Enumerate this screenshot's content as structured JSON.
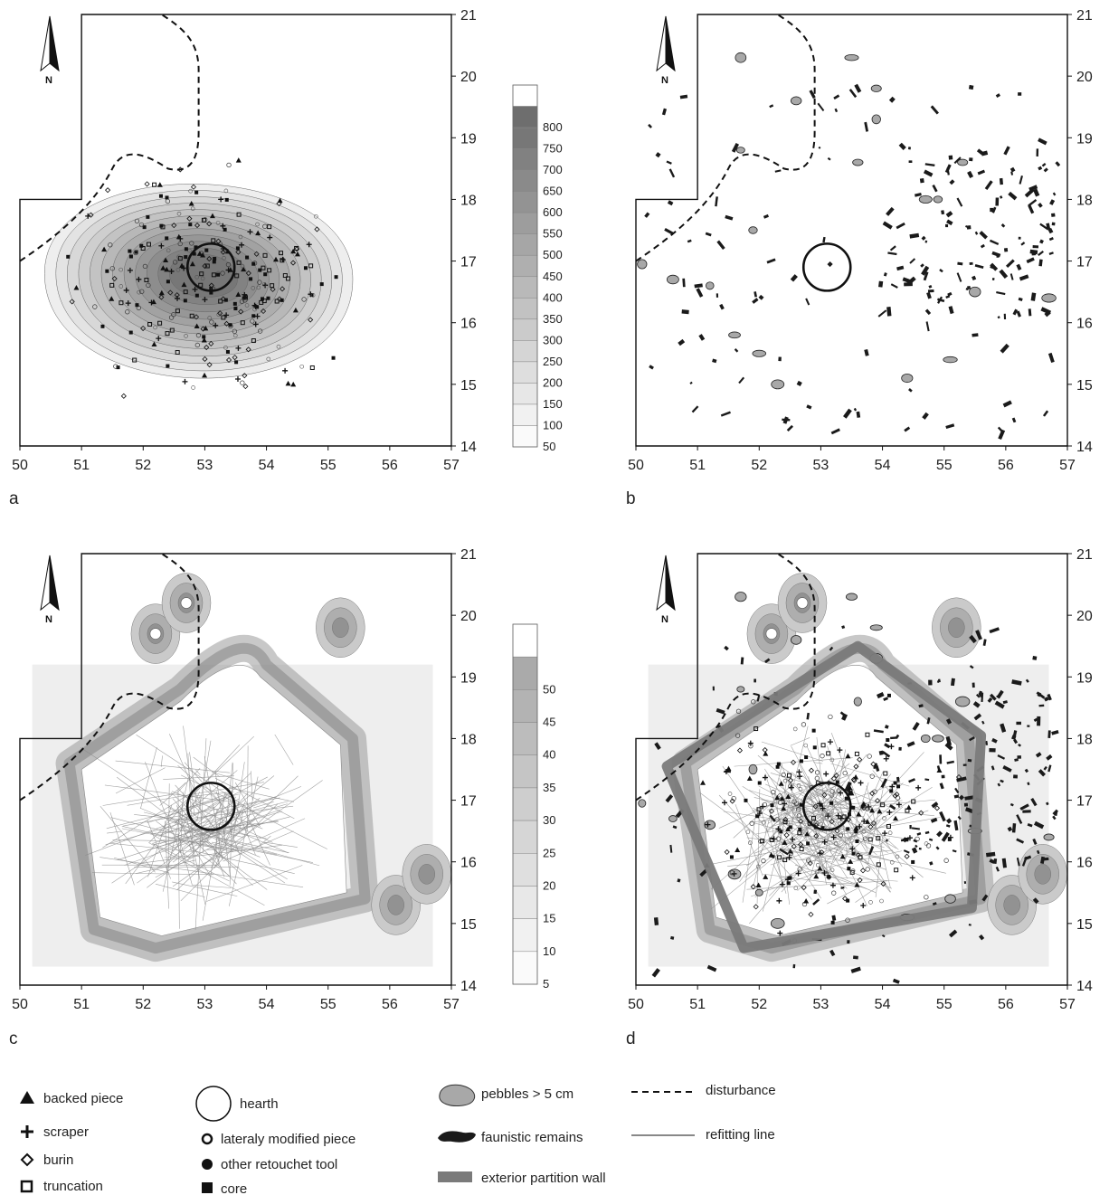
{
  "panels": [
    {
      "label": "a",
      "show_density": true,
      "show_finds": true,
      "show_fauna": false,
      "show_refits": false,
      "show_wall": false,
      "show_disturbance": true
    },
    {
      "label": "b",
      "show_density": false,
      "show_finds": false,
      "show_fauna": true,
      "show_refits": false,
      "show_wall": false,
      "show_disturbance": true
    },
    {
      "label": "c",
      "show_density": true,
      "show_finds": false,
      "show_fauna": false,
      "show_refits": true,
      "show_wall": false,
      "show_disturbance": true
    },
    {
      "label": "d",
      "show_density": true,
      "show_finds": true,
      "show_fauna": true,
      "show_refits": true,
      "show_wall": true,
      "show_disturbance": true
    }
  ],
  "north_label": "N",
  "x_ticks": [
    "50",
    "51",
    "52",
    "53",
    "54",
    "55",
    "56",
    "57"
  ],
  "y_ticks": [
    "14",
    "15",
    "16",
    "17",
    "18",
    "19",
    "20",
    "21"
  ],
  "colorbar_ab": {
    "labels": [
      "800",
      "750",
      "700",
      "650",
      "600",
      "550",
      "500",
      "450",
      "400",
      "350",
      "300",
      "250",
      "200",
      "150",
      "100",
      "50"
    ]
  },
  "colorbar_cd": {
    "labels": [
      "50",
      "45",
      "40",
      "35",
      "30",
      "25",
      "20",
      "15",
      "10",
      "5"
    ]
  },
  "hearth_center": {
    "x": 53.1,
    "y": 16.9
  },
  "wall_vertices": [
    [
      50.5,
      17.55
    ],
    [
      53.6,
      19.5
    ],
    [
      55.6,
      18.05
    ],
    [
      55.45,
      15.25
    ],
    [
      51.75,
      14.6
    ]
  ],
  "legend": {
    "col1": [
      {
        "icon": "backed-piece-icon",
        "label": "backed piece"
      },
      {
        "icon": "scraper-icon",
        "label": "scraper"
      },
      {
        "icon": "burin-icon",
        "label": "burin"
      },
      {
        "icon": "truncation-icon",
        "label": "truncation"
      }
    ],
    "col2": [
      {
        "icon": "hearth-icon",
        "label": "hearth"
      },
      {
        "icon": "lateraly-modified-piece-icon",
        "label": "lateraly modified piece"
      },
      {
        "icon": "other-retouched-tool-icon",
        "label": "other retouchet tool"
      },
      {
        "icon": "core-icon",
        "label": "core"
      }
    ],
    "col3": [
      {
        "icon": "pebble-icon",
        "label": "pebbles > 5 cm"
      },
      {
        "icon": "faunal-remains-icon",
        "label": "faunistic remains"
      },
      {
        "icon": "partition-wall-icon",
        "label": "exterior partition wall"
      }
    ],
    "col4": [
      {
        "icon": "disturbance-line-icon",
        "label": "disturbance"
      },
      {
        "icon": "refitting-line-icon",
        "label": "refitting line"
      }
    ]
  },
  "colors": {
    "density_max": "#6e6e6e",
    "wall": "#7a7a7a",
    "fauna": "#1a1a1a",
    "pebble": "#a8a8a8"
  }
}
